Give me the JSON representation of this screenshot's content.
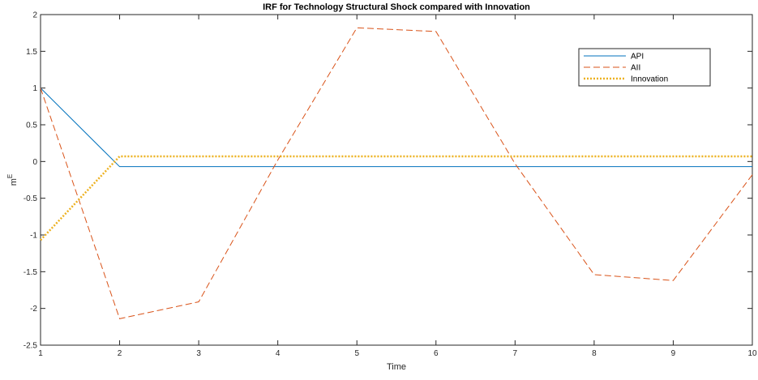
{
  "chart_data": {
    "type": "line",
    "title": "IRF for Technology Structural Shock compared with Innovation",
    "xlabel": "Time",
    "ylabel": "m",
    "ylabel_superscript": "E",
    "xlim": [
      1,
      10
    ],
    "ylim": [
      -2.5,
      2
    ],
    "x_ticks": [
      1,
      2,
      3,
      4,
      5,
      6,
      7,
      8,
      9,
      10
    ],
    "y_ticks": [
      -2.5,
      -2,
      -1.5,
      -1,
      -0.5,
      0,
      0.5,
      1,
      1.5,
      2
    ],
    "grid": false,
    "legend_position": "top-right",
    "x": [
      1,
      2,
      3,
      4,
      5,
      6,
      7,
      8,
      9,
      10
    ],
    "series": [
      {
        "name": "API",
        "color": "#0072BD",
        "style": "solid",
        "values": [
          1.0,
          -0.07,
          -0.07,
          -0.07,
          -0.07,
          -0.07,
          -0.07,
          -0.07,
          -0.07,
          -0.07
        ]
      },
      {
        "name": "AII",
        "color": "#D95319",
        "style": "dashed",
        "values": [
          1.0,
          -2.14,
          -1.91,
          0.02,
          1.82,
          1.77,
          -0.03,
          -1.54,
          -1.62,
          -0.18
        ]
      },
      {
        "name": "Innovation",
        "color": "#EDB120",
        "style": "dotted",
        "values": [
          -1.07,
          0.07,
          0.07,
          0.07,
          0.07,
          0.07,
          0.07,
          0.07,
          0.07,
          0.07
        ]
      }
    ]
  }
}
